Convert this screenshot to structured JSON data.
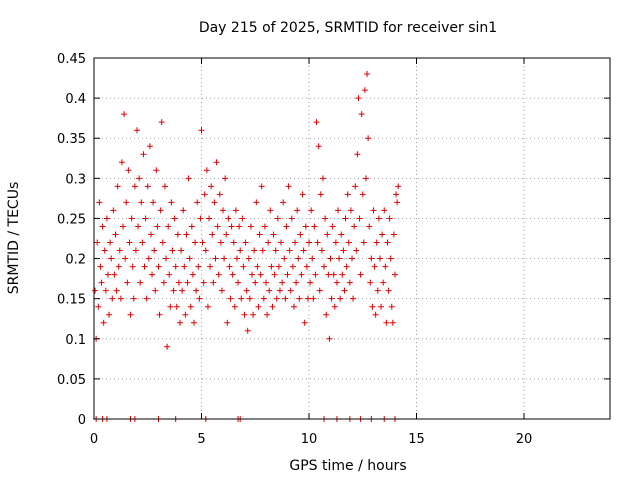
{
  "chart_data": {
    "type": "scatter",
    "title": "Day 215 of 2025, SRMTID for receiver sin1",
    "xlabel": "GPS time / hours",
    "ylabel": "SRMTID / TECUs",
    "xlim": [
      0,
      24
    ],
    "ylim": [
      0,
      0.45
    ],
    "x_ticks": [
      0,
      5,
      10,
      15,
      20
    ],
    "x_tick_labels": [
      "0",
      "5",
      "10",
      "15",
      "20"
    ],
    "y_ticks": [
      0,
      0.05,
      0.1,
      0.15,
      0.2,
      0.25,
      0.3,
      0.35,
      0.4,
      0.45
    ],
    "y_tick_labels": [
      "0",
      "0.05",
      "0.1",
      "0.15",
      "0.2",
      "0.25",
      "0.3",
      "0.35",
      "0.4",
      "0.45"
    ],
    "grid": true,
    "marker": "+",
    "color": "#e00000",
    "series": [
      {
        "name": "SRMTID",
        "points": [
          [
            0.05,
            0.16
          ],
          [
            0.1,
            0.1
          ],
          [
            0.15,
            0.22
          ],
          [
            0.2,
            0.14
          ],
          [
            0.25,
            0.27
          ],
          [
            0.3,
            0.19
          ],
          [
            0.35,
            0.17
          ],
          [
            0.4,
            0.24
          ],
          [
            0.45,
            0.12
          ],
          [
            0.5,
            0.21
          ],
          [
            0.55,
            0.16
          ],
          [
            0.6,
            0.25
          ],
          [
            0.65,
            0.18
          ],
          [
            0.7,
            0.13
          ],
          [
            0.75,
            0.22
          ],
          [
            0.8,
            0.2
          ],
          [
            0.85,
            0.15
          ],
          [
            0.9,
            0.26
          ],
          [
            0.95,
            0.18
          ],
          [
            1.0,
            0.23
          ],
          [
            1.05,
            0.16
          ],
          [
            1.1,
            0.29
          ],
          [
            1.15,
            0.19
          ],
          [
            1.2,
            0.21
          ],
          [
            1.25,
            0.15
          ],
          [
            1.3,
            0.32
          ],
          [
            1.35,
            0.24
          ],
          [
            1.4,
            0.38
          ],
          [
            1.45,
            0.2
          ],
          [
            1.5,
            0.27
          ],
          [
            1.55,
            0.17
          ],
          [
            1.6,
            0.31
          ],
          [
            1.65,
            0.22
          ],
          [
            1.7,
            0.13
          ],
          [
            1.75,
            0.25
          ],
          [
            1.8,
            0.19
          ],
          [
            1.85,
            0.15
          ],
          [
            1.9,
            0.29
          ],
          [
            1.95,
            0.21
          ],
          [
            2.0,
            0.36
          ],
          [
            2.05,
            0.24
          ],
          [
            2.1,
            0.3
          ],
          [
            2.15,
            0.17
          ],
          [
            2.2,
            0.27
          ],
          [
            2.25,
            0.22
          ],
          [
            2.3,
            0.33
          ],
          [
            2.35,
            0.19
          ],
          [
            2.4,
            0.25
          ],
          [
            2.45,
            0.15
          ],
          [
            2.5,
            0.29
          ],
          [
            2.55,
            0.2
          ],
          [
            2.6,
            0.34
          ],
          [
            2.65,
            0.23
          ],
          [
            2.7,
            0.18
          ],
          [
            2.75,
            0.27
          ],
          [
            2.8,
            0.21
          ],
          [
            2.85,
            0.16
          ],
          [
            2.9,
            0.31
          ],
          [
            2.95,
            0.24
          ],
          [
            3.0,
            0.19
          ],
          [
            3.05,
            0.13
          ],
          [
            3.1,
            0.26
          ],
          [
            3.15,
            0.37
          ],
          [
            3.2,
            0.22
          ],
          [
            3.25,
            0.17
          ],
          [
            3.3,
            0.29
          ],
          [
            3.35,
            0.2
          ],
          [
            3.4,
            0.09
          ],
          [
            3.45,
            0.24
          ],
          [
            3.5,
            0.18
          ],
          [
            3.55,
            0.14
          ],
          [
            3.6,
            0.27
          ],
          [
            3.65,
            0.21
          ],
          [
            3.7,
            0.16
          ],
          [
            3.75,
            0.25
          ],
          [
            3.8,
            0.19
          ],
          [
            3.85,
            0.14
          ],
          [
            3.9,
            0.23
          ],
          [
            3.95,
            0.17
          ],
          [
            4.0,
            0.12
          ],
          [
            4.05,
            0.21
          ],
          [
            4.1,
            0.16
          ],
          [
            4.15,
            0.26
          ],
          [
            4.2,
            0.19
          ],
          [
            4.25,
            0.13
          ],
          [
            4.3,
            0.23
          ],
          [
            4.35,
            0.17
          ],
          [
            4.4,
            0.3
          ],
          [
            4.45,
            0.2
          ],
          [
            4.5,
            0.14
          ],
          [
            4.55,
            0.24
          ],
          [
            4.6,
            0.18
          ],
          [
            4.65,
            0.12
          ],
          [
            4.7,
            0.22
          ],
          [
            4.75,
            0.16
          ],
          [
            4.8,
            0.27
          ],
          [
            4.85,
            0.19
          ],
          [
            4.9,
            0.15
          ],
          [
            4.95,
            0.25
          ],
          [
            5.0,
            0.36
          ],
          [
            5.05,
            0.22
          ],
          [
            5.1,
            0.17
          ],
          [
            5.15,
            0.28
          ],
          [
            5.2,
            0.21
          ],
          [
            5.25,
            0.31
          ],
          [
            5.3,
            0.14
          ],
          [
            5.35,
            0.25
          ],
          [
            5.4,
            0.19
          ],
          [
            5.45,
            0.29
          ],
          [
            5.5,
            0.23
          ],
          [
            5.55,
            0.17
          ],
          [
            5.6,
            0.27
          ],
          [
            5.65,
            0.2
          ],
          [
            5.7,
            0.32
          ],
          [
            5.75,
            0.24
          ],
          [
            5.8,
            0.18
          ],
          [
            5.85,
            0.28
          ],
          [
            5.9,
            0.22
          ],
          [
            5.95,
            0.16
          ],
          [
            6.0,
            0.26
          ],
          [
            6.05,
            0.2
          ],
          [
            6.1,
            0.3
          ],
          [
            6.15,
            0.23
          ],
          [
            6.2,
            0.12
          ],
          [
            6.25,
            0.25
          ],
          [
            6.3,
            0.19
          ],
          [
            6.35,
            0.15
          ],
          [
            6.4,
            0.24
          ],
          [
            6.45,
            0.18
          ],
          [
            6.5,
            0.22
          ],
          [
            6.55,
            0.14
          ],
          [
            6.6,
            0.26
          ],
          [
            6.65,
            0.2
          ],
          [
            6.7,
            0.17
          ],
          [
            6.75,
            0.24
          ],
          [
            6.8,
            0.21
          ],
          [
            6.85,
            0.15
          ],
          [
            6.9,
            0.25
          ],
          [
            6.95,
            0.19
          ],
          [
            7.0,
            0.13
          ],
          [
            7.05,
            0.22
          ],
          [
            7.1,
            0.16
          ],
          [
            7.15,
            0.11
          ],
          [
            7.2,
            0.2
          ],
          [
            7.25,
            0.15
          ],
          [
            7.3,
            0.24
          ],
          [
            7.35,
            0.18
          ],
          [
            7.4,
            0.13
          ],
          [
            7.45,
            0.21
          ],
          [
            7.5,
            0.17
          ],
          [
            7.55,
            0.27
          ],
          [
            7.6,
            0.19
          ],
          [
            7.65,
            0.14
          ],
          [
            7.7,
            0.23
          ],
          [
            7.75,
            0.18
          ],
          [
            7.8,
            0.29
          ],
          [
            7.85,
            0.21
          ],
          [
            7.9,
            0.15
          ],
          [
            7.95,
            0.24
          ],
          [
            8.0,
            0.17
          ],
          [
            8.05,
            0.13
          ],
          [
            8.1,
            0.22
          ],
          [
            8.15,
            0.16
          ],
          [
            8.2,
            0.26
          ],
          [
            8.25,
            0.19
          ],
          [
            8.3,
            0.14
          ],
          [
            8.35,
            0.23
          ],
          [
            8.4,
            0.18
          ],
          [
            8.45,
            0.21
          ],
          [
            8.5,
            0.15
          ],
          [
            8.55,
            0.25
          ],
          [
            8.6,
            0.19
          ],
          [
            8.65,
            0.16
          ],
          [
            8.7,
            0.22
          ],
          [
            8.75,
            0.17
          ],
          [
            8.8,
            0.27
          ],
          [
            8.85,
            0.2
          ],
          [
            8.9,
            0.15
          ],
          [
            8.95,
            0.24
          ],
          [
            9.0,
            0.18
          ],
          [
            9.05,
            0.29
          ],
          [
            9.1,
            0.21
          ],
          [
            9.15,
            0.16
          ],
          [
            9.2,
            0.25
          ],
          [
            9.25,
            0.19
          ],
          [
            9.3,
            0.14
          ],
          [
            9.35,
            0.22
          ],
          [
            9.4,
            0.17
          ],
          [
            9.45,
            0.26
          ],
          [
            9.5,
            0.2
          ],
          [
            9.55,
            0.15
          ],
          [
            9.6,
            0.23
          ],
          [
            9.65,
            0.18
          ],
          [
            9.7,
            0.28
          ],
          [
            9.75,
            0.21
          ],
          [
            9.8,
            0.12
          ],
          [
            9.85,
            0.24
          ],
          [
            9.9,
            0.19
          ],
          [
            9.95,
            0.15
          ],
          [
            10.0,
            0.22
          ],
          [
            10.05,
            0.17
          ],
          [
            10.1,
            0.26
          ],
          [
            10.15,
            0.2
          ],
          [
            10.2,
            0.15
          ],
          [
            10.25,
            0.24
          ],
          [
            10.3,
            0.18
          ],
          [
            10.35,
            0.37
          ],
          [
            10.4,
            0.22
          ],
          [
            10.45,
            0.34
          ],
          [
            10.5,
            0.16
          ],
          [
            10.55,
            0.28
          ],
          [
            10.6,
            0.21
          ],
          [
            10.65,
            0.3
          ],
          [
            10.7,
            0.19
          ],
          [
            10.75,
            0.25
          ],
          [
            10.8,
            0.13
          ],
          [
            10.85,
            0.23
          ],
          [
            10.9,
            0.18
          ],
          [
            10.95,
            0.1
          ],
          [
            11.0,
            0.2
          ],
          [
            11.05,
            0.15
          ],
          [
            11.1,
            0.24
          ],
          [
            11.15,
            0.18
          ],
          [
            11.2,
            0.14
          ],
          [
            11.25,
            0.22
          ],
          [
            11.3,
            0.17
          ],
          [
            11.35,
            0.26
          ],
          [
            11.4,
            0.2
          ],
          [
            11.45,
            0.15
          ],
          [
            11.5,
            0.23
          ],
          [
            11.55,
            0.18
          ],
          [
            11.6,
            0.21
          ],
          [
            11.65,
            0.16
          ],
          [
            11.7,
            0.25
          ],
          [
            11.75,
            0.19
          ],
          [
            11.8,
            0.28
          ],
          [
            11.85,
            0.22
          ],
          [
            11.9,
            0.17
          ],
          [
            11.95,
            0.26
          ],
          [
            12.0,
            0.2
          ],
          [
            12.05,
            0.15
          ],
          [
            12.1,
            0.24
          ],
          [
            12.15,
            0.29
          ],
          [
            12.2,
            0.21
          ],
          [
            12.25,
            0.33
          ],
          [
            12.3,
            0.4
          ],
          [
            12.35,
            0.25
          ],
          [
            12.4,
            0.18
          ],
          [
            12.45,
            0.38
          ],
          [
            12.5,
            0.28
          ],
          [
            12.55,
            0.22
          ],
          [
            12.6,
            0.41
          ],
          [
            12.65,
            0.3
          ],
          [
            12.7,
            0.43
          ],
          [
            12.75,
            0.35
          ],
          [
            12.8,
            0.24
          ],
          [
            12.85,
            0.17
          ],
          [
            12.9,
            0.2
          ],
          [
            12.95,
            0.14
          ],
          [
            13.0,
            0.26
          ],
          [
            13.05,
            0.19
          ],
          [
            13.1,
            0.13
          ],
          [
            13.15,
            0.22
          ],
          [
            13.2,
            0.16
          ],
          [
            13.25,
            0.25
          ],
          [
            13.3,
            0.2
          ],
          [
            13.35,
            0.14
          ],
          [
            13.4,
            0.23
          ],
          [
            13.45,
            0.17
          ],
          [
            13.5,
            0.26
          ],
          [
            13.55,
            0.19
          ],
          [
            13.6,
            0.12
          ],
          [
            13.65,
            0.22
          ],
          [
            13.7,
            0.16
          ],
          [
            13.75,
            0.25
          ],
          [
            13.8,
            0.2
          ],
          [
            13.85,
            0.14
          ],
          [
            13.9,
            0.12
          ],
          [
            13.95,
            0.23
          ],
          [
            14.0,
            0.18
          ],
          [
            14.05,
            0.28
          ],
          [
            14.1,
            0.27
          ],
          [
            14.15,
            0.29
          ],
          [
            0.1,
            0.0
          ],
          [
            0.4,
            0.0
          ],
          [
            0.6,
            0.0
          ],
          [
            1.7,
            0.0
          ],
          [
            1.9,
            0.0
          ],
          [
            3.0,
            0.0
          ],
          [
            3.8,
            0.0
          ],
          [
            5.2,
            0.0
          ],
          [
            6.7,
            0.0
          ],
          [
            6.8,
            0.0
          ],
          [
            10.7,
            0.0
          ],
          [
            11.3,
            0.0
          ],
          [
            11.9,
            0.0
          ],
          [
            12.4,
            0.0
          ],
          [
            12.9,
            0.0
          ],
          [
            13.5,
            0.0
          ],
          [
            14.0,
            0.0
          ]
        ]
      }
    ]
  }
}
